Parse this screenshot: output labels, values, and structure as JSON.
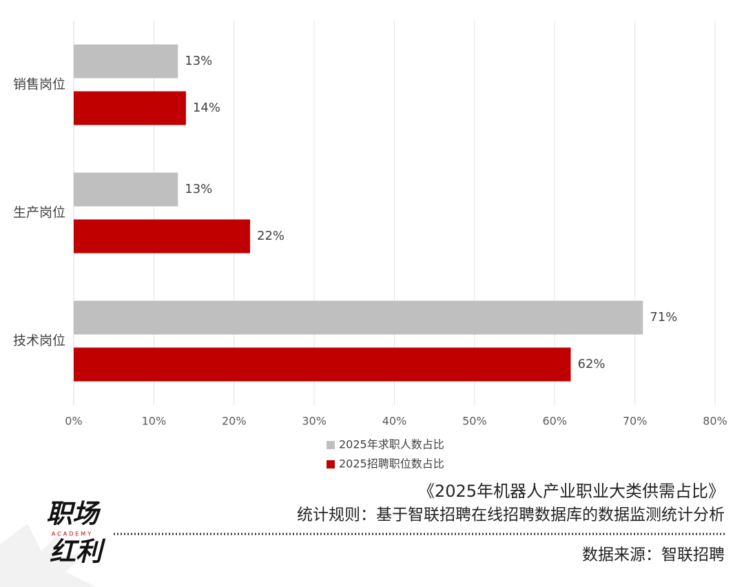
{
  "chart_data": {
    "type": "bar",
    "orientation": "horizontal",
    "categories": [
      "销售岗位",
      "生产岗位",
      "技术岗位"
    ],
    "series": [
      {
        "name": "2025年求职人数占比",
        "color": "#bfbfbf",
        "values": [
          13,
          13,
          71
        ],
        "value_labels": [
          "13%",
          "13%",
          "71%"
        ]
      },
      {
        "name": "2025招聘职位数占比",
        "color": "#c00000",
        "values": [
          14,
          22,
          62
        ],
        "value_labels": [
          "14%",
          "22%",
          "62%"
        ]
      }
    ],
    "xlim": [
      0,
      80
    ],
    "xticks": [
      {
        "value": 0,
        "label": "0%"
      },
      {
        "value": 10,
        "label": "10%"
      },
      {
        "value": 20,
        "label": "20%"
      },
      {
        "value": 30,
        "label": "30%"
      },
      {
        "value": 40,
        "label": "40%"
      },
      {
        "value": 50,
        "label": "50%"
      },
      {
        "value": 60,
        "label": "60%"
      },
      {
        "value": 70,
        "label": "70%"
      },
      {
        "value": 80,
        "label": "80%"
      }
    ],
    "grid": true,
    "legend": "bottom",
    "caption": "《2025年机器人产业职业大类供需占比》",
    "note": "统计规则：基于智联招聘在线招聘数据库的数据监测统计分析",
    "source": "数据来源：智联招聘",
    "logo": {
      "top": "职场",
      "middle": "ACADEMY",
      "bottom": "红利"
    }
  }
}
